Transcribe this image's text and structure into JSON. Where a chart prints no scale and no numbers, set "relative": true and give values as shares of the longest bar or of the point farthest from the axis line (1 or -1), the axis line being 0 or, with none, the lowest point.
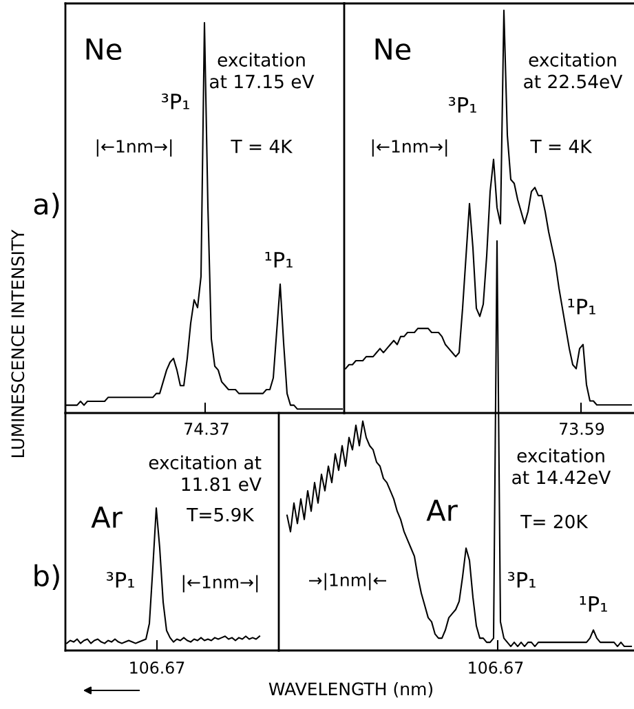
{
  "chart_data": [
    {
      "type": "line",
      "relative": true,
      "color": "#000000",
      "ylabel": "LUMINESCENCE INTENSITY",
      "annotations": [
        "Ne",
        "³P₁",
        "excitation\nat 17.15 eV",
        "T = 4K",
        "¹P₁",
        "|←1nm→|",
        "a)",
        "74.37"
      ],
      "categories": [
        null,
        null,
        null,
        null,
        null,
        null,
        null,
        null,
        null,
        null,
        null,
        null,
        null,
        null,
        null,
        null,
        null,
        null,
        null,
        null,
        null,
        null,
        null,
        null,
        null,
        null,
        null,
        null,
        null,
        null,
        null,
        null,
        null,
        null,
        null,
        null,
        null,
        null,
        null,
        null,
        null,
        null,
        null,
        null,
        null,
        null,
        null,
        null,
        null,
        null,
        null,
        null,
        null,
        null,
        null,
        null,
        null,
        null,
        null,
        null,
        null,
        null,
        null,
        null,
        null,
        null,
        null,
        null,
        null,
        null,
        null,
        null,
        null,
        null,
        null,
        null,
        null,
        null,
        null,
        null,
        null
      ],
      "values": [
        0.02,
        0.02,
        0.02,
        0.02,
        0.03,
        0.02,
        0.03,
        0.03,
        0.03,
        0.03,
        0.03,
        0.03,
        0.04,
        0.04,
        0.04,
        0.04,
        0.04,
        0.04,
        0.04,
        0.04,
        0.04,
        0.04,
        0.04,
        0.04,
        0.04,
        0.04,
        0.05,
        0.05,
        0.08,
        0.11,
        0.13,
        0.14,
        0.11,
        0.07,
        0.07,
        0.14,
        0.23,
        0.29,
        0.27,
        0.35,
        1,
        0.53,
        0.19,
        0.12,
        0.11,
        0.08,
        0.07,
        0.06,
        0.06,
        0.06,
        0.05,
        0.05,
        0.05,
        0.05,
        0.05,
        0.05,
        0.05,
        0.05,
        0.06,
        0.06,
        0.09,
        0.21,
        0.33,
        0.18,
        0.05,
        0.02,
        0.02,
        0.01,
        0.01,
        0.01,
        0.01,
        0.01,
        0.01,
        0.01,
        0.01,
        0.01,
        0.01,
        0.01,
        0.01,
        0.01,
        0.01
      ]
    },
    {
      "type": "line",
      "relative": true,
      "color": "#000000",
      "annotations": [
        "Ne",
        "³P₁",
        "excitation\nat 22.54eV",
        "T = 4K",
        "¹P₁",
        "|←1nm→|",
        "73.59"
      ],
      "categories": [
        null,
        null,
        null,
        null,
        null,
        null,
        null,
        null,
        null,
        null,
        null,
        null,
        null,
        null,
        null,
        null,
        null,
        null,
        null,
        null,
        null,
        null,
        null,
        null,
        null,
        null,
        null,
        null,
        null,
        null,
        null,
        null,
        null,
        null,
        null,
        null,
        null,
        null,
        null,
        null,
        null,
        null,
        null,
        null,
        null,
        null,
        null,
        null,
        null,
        null,
        null,
        null,
        null,
        null,
        null,
        null,
        null,
        null,
        null,
        null,
        null,
        null,
        null,
        null,
        null,
        null,
        null,
        null,
        null,
        null,
        null,
        null,
        null,
        null,
        null,
        null,
        null,
        null,
        null,
        null,
        null,
        null,
        null,
        null
      ],
      "values": [
        0.11,
        0.12,
        0.12,
        0.13,
        0.13,
        0.13,
        0.14,
        0.14,
        0.14,
        0.15,
        0.16,
        0.15,
        0.16,
        0.17,
        0.18,
        0.17,
        0.19,
        0.19,
        0.2,
        0.2,
        0.2,
        0.21,
        0.21,
        0.21,
        0.21,
        0.2,
        0.2,
        0.2,
        0.19,
        0.17,
        0.16,
        0.15,
        0.14,
        0.15,
        0.26,
        0.39,
        0.52,
        0.41,
        0.26,
        0.24,
        0.27,
        0.39,
        0.55,
        0.63,
        0.51,
        0.47,
        1,
        0.69,
        0.58,
        0.57,
        0.53,
        0.5,
        0.47,
        0.5,
        0.55,
        0.56,
        0.54,
        0.54,
        0.5,
        0.45,
        0.41,
        0.37,
        0.31,
        0.26,
        0.21,
        0.16,
        0.12,
        0.11,
        0.16,
        0.17,
        0.07,
        0.03,
        0.03,
        0.02,
        0.02,
        0.02,
        0.02,
        0.02,
        0.02,
        0.02,
        0.02,
        0.02,
        0.02,
        0.02
      ]
    },
    {
      "type": "line",
      "relative": true,
      "color": "#000000",
      "xlabel": "WAVELENGTH (nm)",
      "annotations": [
        "Ar",
        "³P₁",
        "excitation at\n11.81 eV",
        "T=5.9K",
        "|←1nm→|",
        "b)",
        "106.67"
      ],
      "categories": [
        null,
        null,
        null,
        null,
        null,
        null,
        null,
        null,
        null,
        null,
        null,
        null,
        null,
        null,
        null,
        null,
        null,
        null,
        null,
        null,
        null,
        null,
        null,
        null,
        null,
        null,
        null,
        null,
        null,
        null,
        null,
        null,
        null,
        null,
        null,
        null,
        null,
        null,
        null,
        null,
        null,
        null,
        null,
        null,
        null,
        null,
        null,
        null,
        null,
        null,
        null,
        null,
        null,
        null,
        null,
        null,
        null
      ],
      "values": [
        0.05,
        0.07,
        0.06,
        0.08,
        0.05,
        0.07,
        0.08,
        0.05,
        0.07,
        0.08,
        0.06,
        0.05,
        0.07,
        0.06,
        0.08,
        0.06,
        0.05,
        0.06,
        0.07,
        0.06,
        0.05,
        0.06,
        0.07,
        0.08,
        0.19,
        0.58,
        1,
        0.72,
        0.34,
        0.14,
        0.09,
        0.06,
        0.08,
        0.07,
        0.09,
        0.07,
        0.06,
        0.08,
        0.07,
        0.09,
        0.07,
        0.08,
        0.07,
        0.09,
        0.08,
        0.09,
        0.1,
        0.08,
        0.09,
        0.07,
        0.09,
        0.08,
        0.1,
        0.08,
        0.09,
        0.08,
        0.1
      ]
    },
    {
      "type": "line",
      "relative": true,
      "color": "#000000",
      "annotations": [
        "Ar",
        "excitation\nat 14.42eV",
        "T= 20K",
        "³P₁",
        "¹P₁",
        "→|1nm|←",
        "106.67"
      ],
      "categories": [
        null,
        null,
        null,
        null,
        null,
        null,
        null,
        null,
        null,
        null,
        null,
        null,
        null,
        null,
        null,
        null,
        null,
        null,
        null,
        null,
        null,
        null,
        null,
        null,
        null,
        null,
        null,
        null,
        null,
        null,
        null,
        null,
        null,
        null,
        null,
        null,
        null,
        null,
        null,
        null,
        null,
        null,
        null,
        null,
        null,
        null,
        null,
        null,
        null,
        null,
        null,
        null,
        null,
        null,
        null,
        null,
        null,
        null,
        null,
        null,
        null,
        null,
        null,
        null,
        null,
        null,
        null,
        null,
        null,
        null,
        null,
        null,
        null,
        null,
        null,
        null,
        null,
        null,
        null,
        null,
        null,
        null,
        null,
        null,
        null,
        null,
        null,
        null,
        null,
        null,
        null,
        null,
        null,
        null,
        null,
        null,
        null,
        null,
        null,
        null,
        null
      ],
      "values": [
        0.33,
        0.29,
        0.36,
        0.31,
        0.37,
        0.32,
        0.39,
        0.34,
        0.41,
        0.36,
        0.43,
        0.39,
        0.45,
        0.41,
        0.48,
        0.44,
        0.5,
        0.45,
        0.52,
        0.49,
        0.55,
        0.5,
        0.56,
        0.52,
        0.5,
        0.49,
        0.46,
        0.45,
        0.42,
        0.41,
        0.39,
        0.37,
        0.34,
        0.32,
        0.29,
        0.27,
        0.25,
        0.23,
        0.18,
        0.14,
        0.11,
        0.08,
        0.07,
        0.04,
        0.03,
        0.03,
        0.05,
        0.08,
        0.09,
        0.1,
        0.12,
        0.18,
        0.25,
        0.22,
        0.13,
        0.06,
        0.03,
        0.03,
        0.02,
        0.02,
        0.03,
        1,
        0.07,
        0.03,
        0.02,
        0.01,
        0.02,
        0.01,
        0.02,
        0.01,
        0.02,
        0.02,
        0.01,
        0.02,
        0.02,
        0.02,
        0.02,
        0.02,
        0.02,
        0.02,
        0.02,
        0.02,
        0.02,
        0.02,
        0.02,
        0.02,
        0.02,
        0.02,
        0.03,
        0.05,
        0.03,
        0.02,
        0.02,
        0.02,
        0.02,
        0.02,
        0.01,
        0.02,
        0.01,
        0.01,
        0.01
      ]
    }
  ]
}
